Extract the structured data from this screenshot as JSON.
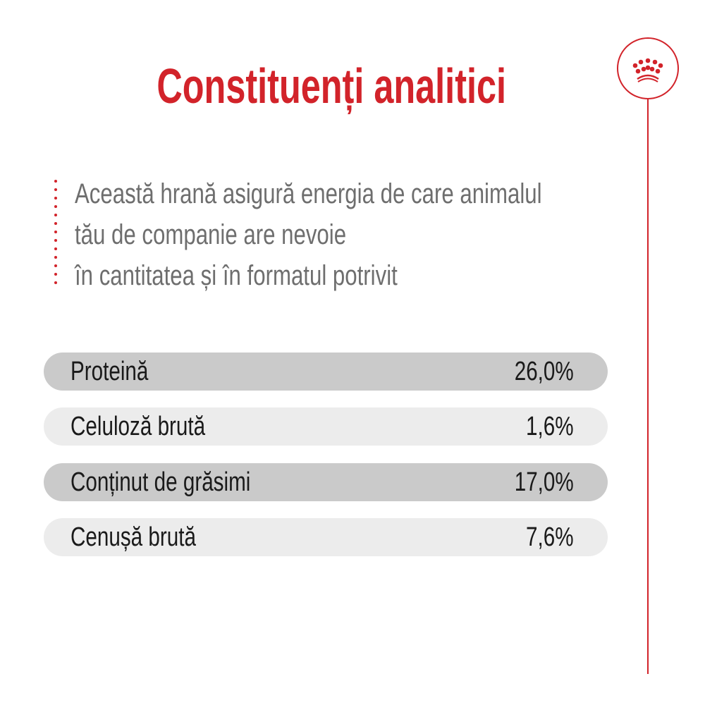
{
  "title": "Constituenți analitici",
  "intro": {
    "lines": [
      "Această hrană asigură energia de care animalul",
      "tău de companie are nevoie",
      "în cantitatea și în formatul potrivit"
    ]
  },
  "constituents": [
    {
      "label": "Proteină",
      "value": "26,0%"
    },
    {
      "label": "Celuloză brută",
      "value": "1,6%"
    },
    {
      "label": "Conținut de grăsimi",
      "value": "17,0%"
    },
    {
      "label": "Cenușă brută",
      "value": "7,6%"
    }
  ],
  "logo": {
    "icon": "crown-icon"
  },
  "colors": {
    "accent": "#d2232a",
    "text_gray": "#6e6e6e",
    "row_dark": "#cacaca",
    "row_light": "#ececec"
  }
}
